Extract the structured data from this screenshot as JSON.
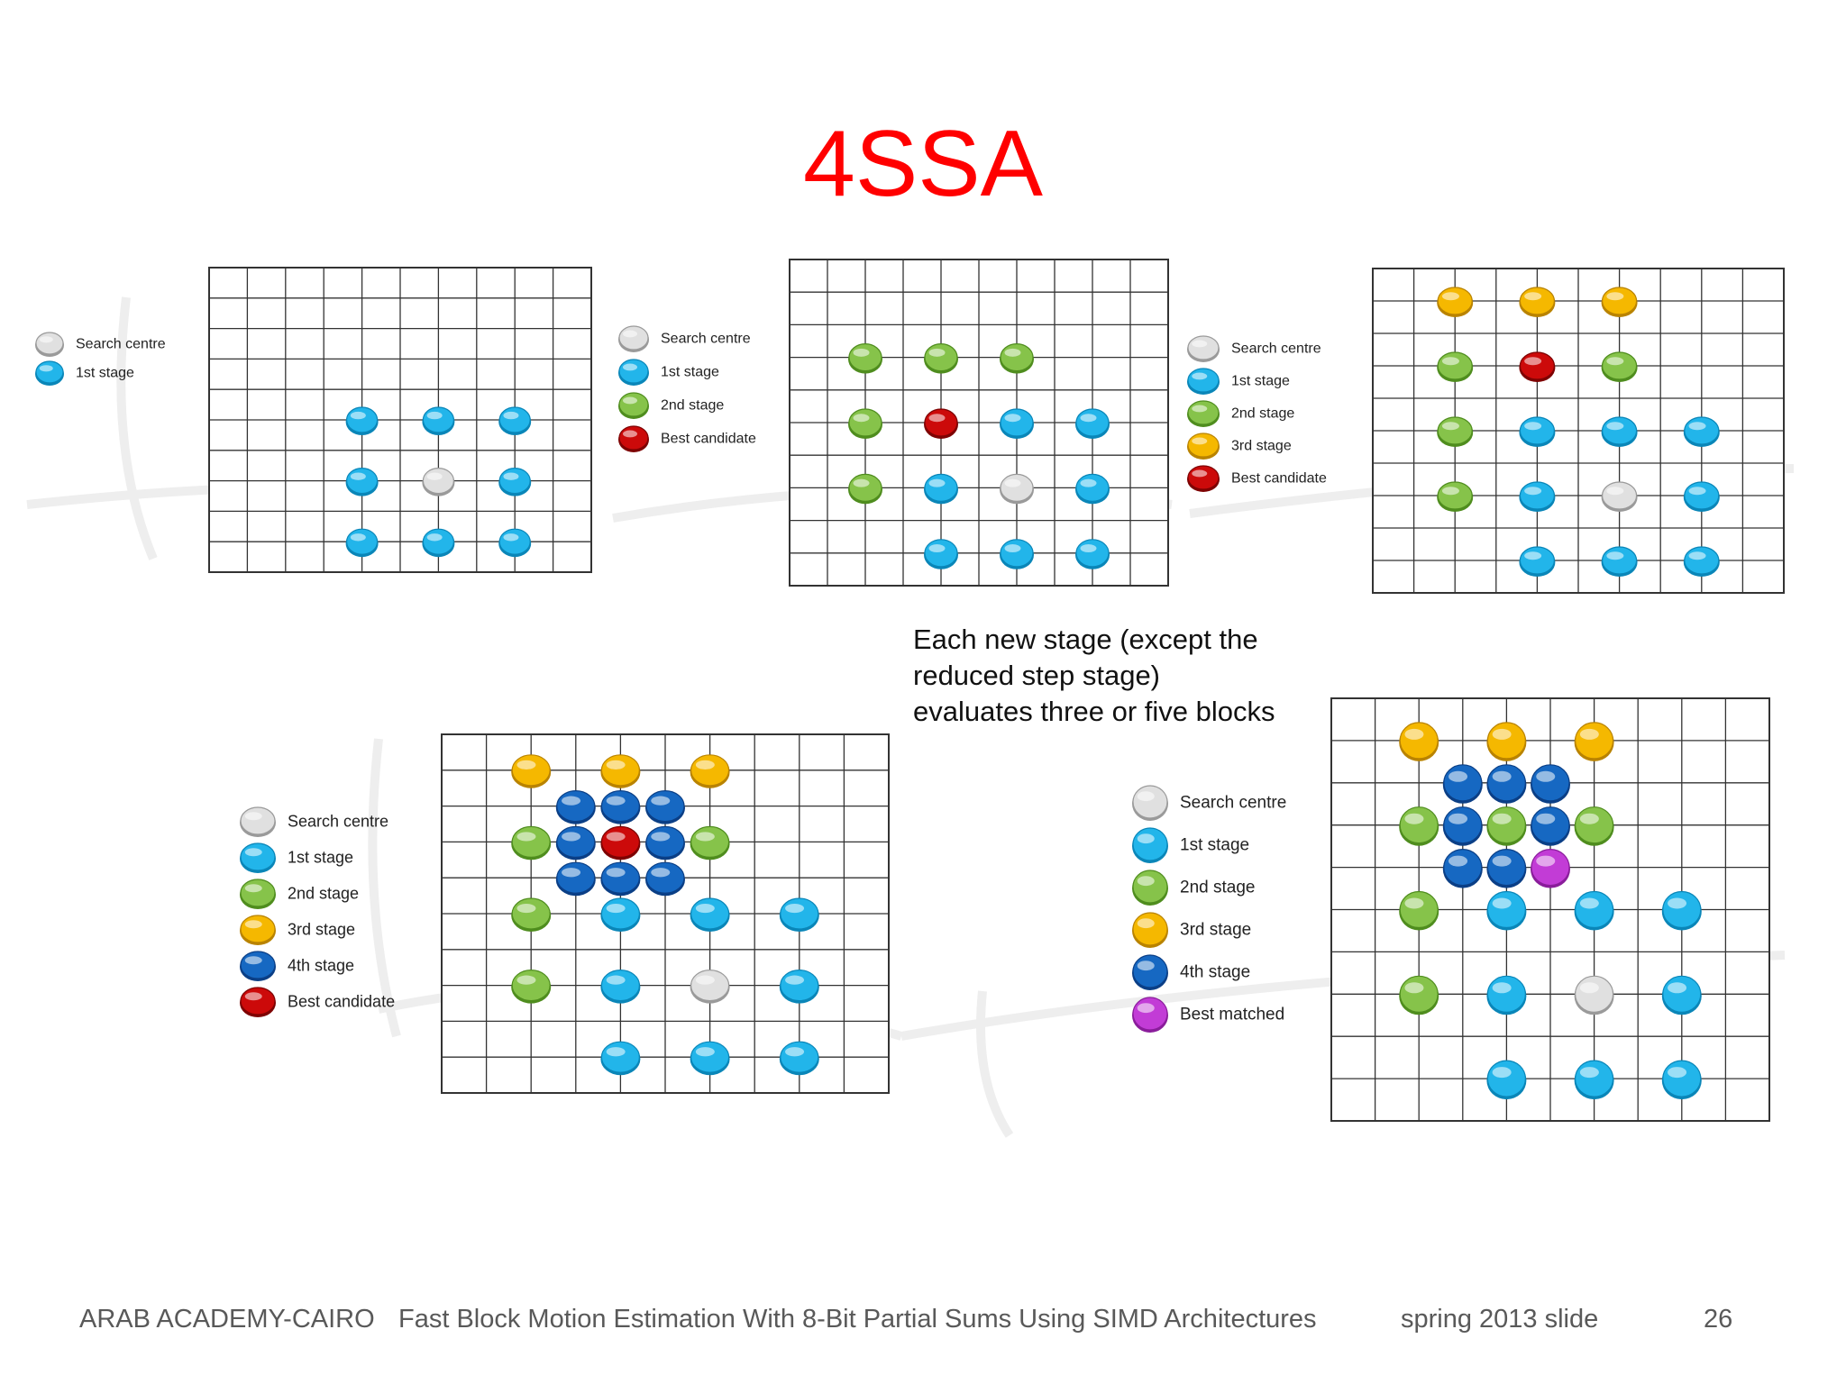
{
  "title": "4SSA",
  "note_lines": [
    "Each new stage (except the",
    "reduced step stage)",
    "evaluates three or five blocks"
  ],
  "footer": {
    "institution": "ARAB ACADEMY-CAIRO",
    "paper": "Fast Block Motion Estimation With 8-Bit Partial Sums Using SIMD Architectures",
    "term": "spring 2013 slide",
    "page": "26"
  },
  "colors": {
    "title": "#ff0000",
    "grid_line": "#333333",
    "search_centre": "#e0e0e0",
    "stage1": "#22b5ea",
    "stage2": "#86c34a",
    "stage3": "#f5b800",
    "stage4": "#1668c2",
    "best_candidate": "#cc0a0a",
    "best_matched": "#c23cd6"
  },
  "panels": [
    {
      "name": "panel-stage-1",
      "legend": [
        {
          "key": "search_centre",
          "label": "Search centre"
        },
        {
          "key": "stage1",
          "label": "1st stage"
        }
      ],
      "grid": {
        "cols": 10,
        "rows": 10
      },
      "points": [
        {
          "col": 4,
          "row": 5,
          "key": "stage1"
        },
        {
          "col": 6,
          "row": 5,
          "key": "stage1"
        },
        {
          "col": 8,
          "row": 5,
          "key": "stage1"
        },
        {
          "col": 4,
          "row": 7,
          "key": "stage1"
        },
        {
          "col": 6,
          "row": 7,
          "key": "search_centre"
        },
        {
          "col": 8,
          "row": 7,
          "key": "stage1"
        },
        {
          "col": 4,
          "row": 9,
          "key": "stage1"
        },
        {
          "col": 6,
          "row": 9,
          "key": "stage1"
        },
        {
          "col": 8,
          "row": 9,
          "key": "stage1"
        }
      ]
    },
    {
      "name": "panel-stage-2",
      "legend": [
        {
          "key": "search_centre",
          "label": "Search centre"
        },
        {
          "key": "stage1",
          "label": "1st stage"
        },
        {
          "key": "stage2",
          "label": "2nd stage"
        },
        {
          "key": "best_candidate",
          "label": "Best candidate"
        }
      ],
      "grid": {
        "cols": 10,
        "rows": 10
      },
      "points": [
        {
          "col": 2,
          "row": 3,
          "key": "stage2"
        },
        {
          "col": 4,
          "row": 3,
          "key": "stage2"
        },
        {
          "col": 6,
          "row": 3,
          "key": "stage2"
        },
        {
          "col": 2,
          "row": 5,
          "key": "stage2"
        },
        {
          "col": 4,
          "row": 5,
          "key": "best_candidate"
        },
        {
          "col": 6,
          "row": 5,
          "key": "stage1"
        },
        {
          "col": 8,
          "row": 5,
          "key": "stage1"
        },
        {
          "col": 2,
          "row": 7,
          "key": "stage2"
        },
        {
          "col": 4,
          "row": 7,
          "key": "stage1"
        },
        {
          "col": 6,
          "row": 7,
          "key": "search_centre"
        },
        {
          "col": 8,
          "row": 7,
          "key": "stage1"
        },
        {
          "col": 4,
          "row": 9,
          "key": "stage1"
        },
        {
          "col": 6,
          "row": 9,
          "key": "stage1"
        },
        {
          "col": 8,
          "row": 9,
          "key": "stage1"
        }
      ]
    },
    {
      "name": "panel-stage-3",
      "legend": [
        {
          "key": "search_centre",
          "label": "Search centre"
        },
        {
          "key": "stage1",
          "label": "1st stage"
        },
        {
          "key": "stage2",
          "label": "2nd stage"
        },
        {
          "key": "stage3",
          "label": "3rd stage"
        },
        {
          "key": "best_candidate",
          "label": "Best candidate"
        }
      ],
      "grid": {
        "cols": 10,
        "rows": 10
      },
      "points": [
        {
          "col": 2,
          "row": 1,
          "key": "stage3"
        },
        {
          "col": 4,
          "row": 1,
          "key": "stage3"
        },
        {
          "col": 6,
          "row": 1,
          "key": "stage3"
        },
        {
          "col": 2,
          "row": 3,
          "key": "stage2"
        },
        {
          "col": 4,
          "row": 3,
          "key": "best_candidate"
        },
        {
          "col": 6,
          "row": 3,
          "key": "stage2"
        },
        {
          "col": 2,
          "row": 5,
          "key": "stage2"
        },
        {
          "col": 4,
          "row": 5,
          "key": "stage1"
        },
        {
          "col": 6,
          "row": 5,
          "key": "stage1"
        },
        {
          "col": 8,
          "row": 5,
          "key": "stage1"
        },
        {
          "col": 2,
          "row": 7,
          "key": "stage2"
        },
        {
          "col": 4,
          "row": 7,
          "key": "stage1"
        },
        {
          "col": 6,
          "row": 7,
          "key": "search_centre"
        },
        {
          "col": 8,
          "row": 7,
          "key": "stage1"
        },
        {
          "col": 4,
          "row": 9,
          "key": "stage1"
        },
        {
          "col": 6,
          "row": 9,
          "key": "stage1"
        },
        {
          "col": 8,
          "row": 9,
          "key": "stage1"
        }
      ]
    },
    {
      "name": "panel-stage-4",
      "legend": [
        {
          "key": "search_centre",
          "label": "Search centre"
        },
        {
          "key": "stage1",
          "label": "1st stage"
        },
        {
          "key": "stage2",
          "label": "2nd stage"
        },
        {
          "key": "stage3",
          "label": "3rd stage"
        },
        {
          "key": "stage4",
          "label": "4th stage"
        },
        {
          "key": "best_candidate",
          "label": "Best candidate"
        }
      ],
      "grid": {
        "cols": 10,
        "rows": 10
      },
      "points": [
        {
          "col": 2,
          "row": 1,
          "key": "stage3"
        },
        {
          "col": 4,
          "row": 1,
          "key": "stage3"
        },
        {
          "col": 6,
          "row": 1,
          "key": "stage3"
        },
        {
          "col": 3,
          "row": 2,
          "key": "stage4"
        },
        {
          "col": 4,
          "row": 2,
          "key": "stage4"
        },
        {
          "col": 5,
          "row": 2,
          "key": "stage4"
        },
        {
          "col": 2,
          "row": 3,
          "key": "stage2"
        },
        {
          "col": 3,
          "row": 3,
          "key": "stage4"
        },
        {
          "col": 4,
          "row": 3,
          "key": "best_candidate"
        },
        {
          "col": 5,
          "row": 3,
          "key": "stage4"
        },
        {
          "col": 6,
          "row": 3,
          "key": "stage2"
        },
        {
          "col": 3,
          "row": 4,
          "key": "stage4"
        },
        {
          "col": 4,
          "row": 4,
          "key": "stage4"
        },
        {
          "col": 5,
          "row": 4,
          "key": "stage4"
        },
        {
          "col": 2,
          "row": 5,
          "key": "stage2"
        },
        {
          "col": 4,
          "row": 5,
          "key": "stage1"
        },
        {
          "col": 6,
          "row": 5,
          "key": "stage1"
        },
        {
          "col": 8,
          "row": 5,
          "key": "stage1"
        },
        {
          "col": 2,
          "row": 7,
          "key": "stage2"
        },
        {
          "col": 4,
          "row": 7,
          "key": "stage1"
        },
        {
          "col": 6,
          "row": 7,
          "key": "search_centre"
        },
        {
          "col": 8,
          "row": 7,
          "key": "stage1"
        },
        {
          "col": 4,
          "row": 9,
          "key": "stage1"
        },
        {
          "col": 6,
          "row": 9,
          "key": "stage1"
        },
        {
          "col": 8,
          "row": 9,
          "key": "stage1"
        }
      ]
    },
    {
      "name": "panel-final",
      "legend": [
        {
          "key": "search_centre",
          "label": "Search centre"
        },
        {
          "key": "stage1",
          "label": "1st stage"
        },
        {
          "key": "stage2",
          "label": "2nd stage"
        },
        {
          "key": "stage3",
          "label": "3rd stage"
        },
        {
          "key": "stage4",
          "label": "4th stage"
        },
        {
          "key": "best_matched",
          "label": "Best matched"
        }
      ],
      "grid": {
        "cols": 10,
        "rows": 10
      },
      "points": [
        {
          "col": 2,
          "row": 1,
          "key": "stage3"
        },
        {
          "col": 4,
          "row": 1,
          "key": "stage3"
        },
        {
          "col": 6,
          "row": 1,
          "key": "stage3"
        },
        {
          "col": 3,
          "row": 2,
          "key": "stage4"
        },
        {
          "col": 4,
          "row": 2,
          "key": "stage4"
        },
        {
          "col": 5,
          "row": 2,
          "key": "stage4"
        },
        {
          "col": 2,
          "row": 3,
          "key": "stage2"
        },
        {
          "col": 3,
          "row": 3,
          "key": "stage4"
        },
        {
          "col": 4,
          "row": 3,
          "key": "stage2"
        },
        {
          "col": 5,
          "row": 3,
          "key": "stage4"
        },
        {
          "col": 6,
          "row": 3,
          "key": "stage2"
        },
        {
          "col": 3,
          "row": 4,
          "key": "stage4"
        },
        {
          "col": 4,
          "row": 4,
          "key": "stage4"
        },
        {
          "col": 5,
          "row": 4,
          "key": "best_matched"
        },
        {
          "col": 2,
          "row": 5,
          "key": "stage2"
        },
        {
          "col": 4,
          "row": 5,
          "key": "stage1"
        },
        {
          "col": 6,
          "row": 5,
          "key": "stage1"
        },
        {
          "col": 8,
          "row": 5,
          "key": "stage1"
        },
        {
          "col": 2,
          "row": 7,
          "key": "stage2"
        },
        {
          "col": 4,
          "row": 7,
          "key": "stage1"
        },
        {
          "col": 6,
          "row": 7,
          "key": "search_centre"
        },
        {
          "col": 8,
          "row": 7,
          "key": "stage1"
        },
        {
          "col": 4,
          "row": 9,
          "key": "stage1"
        },
        {
          "col": 6,
          "row": 9,
          "key": "stage1"
        },
        {
          "col": 8,
          "row": 9,
          "key": "stage1"
        }
      ]
    }
  ]
}
